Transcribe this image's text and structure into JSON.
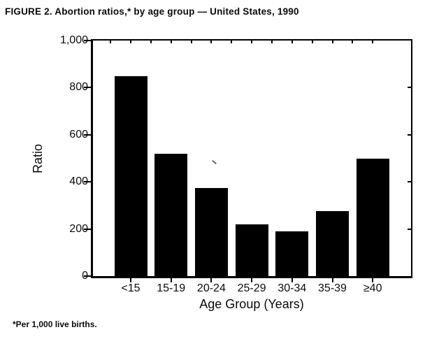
{
  "header": {
    "title": "FIGURE 2. Abortion ratios,* by age group — United States, 1990"
  },
  "chart_data": {
    "type": "bar",
    "title": "FIGURE 2. Abortion ratios,* by age group — United States, 1990",
    "categories": [
      "<15",
      "15-19",
      "20-24",
      "25-29",
      "30-34",
      "35-39",
      "≥40"
    ],
    "values": [
      850,
      520,
      375,
      220,
      190,
      275,
      500
    ],
    "xlabel": "Age Group (Years)",
    "ylabel": "Ratio",
    "ylim": [
      0,
      1000
    ],
    "yticks": [
      0,
      200,
      400,
      600,
      800,
      1000
    ],
    "ytick_labels": [
      "0",
      "200",
      "400",
      "600",
      "800",
      "1,000"
    ],
    "bar_color": "#000000",
    "background": "#ffffff",
    "grid": false,
    "legend": false,
    "footnote": "*Per 1,000 live births."
  }
}
